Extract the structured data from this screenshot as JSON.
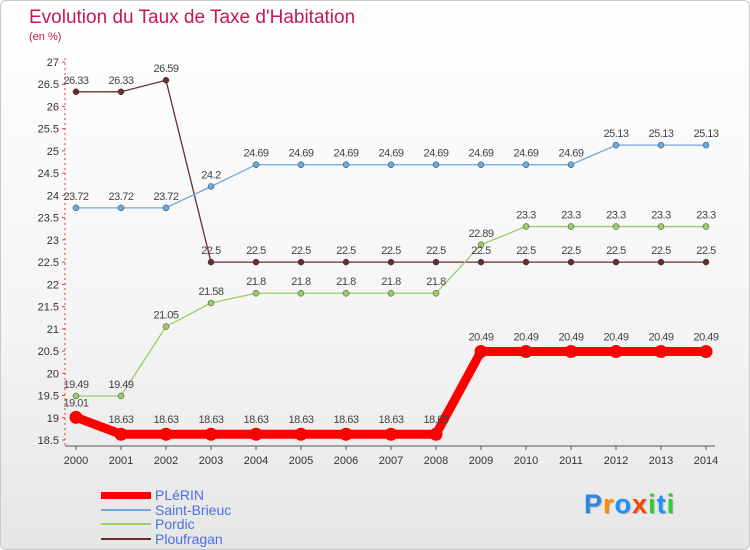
{
  "header": {
    "title": "Evolution du Taux de Taxe d'Habitation",
    "subtitle": "(en %)"
  },
  "chart_data": {
    "type": "line",
    "title": "Evolution du Taux de Taxe d'Habitation",
    "subtitle": "(en %)",
    "xlabel": "",
    "ylabel": "",
    "categories": [
      "2000",
      "2001",
      "2002",
      "2003",
      "2004",
      "2005",
      "2006",
      "2007",
      "2008",
      "2009",
      "2010",
      "2011",
      "2012",
      "2013",
      "2014"
    ],
    "y_ticks": [
      "18.5",
      "19",
      "19.5",
      "20",
      "20.5",
      "21",
      "21.5",
      "22",
      "22.5",
      "23",
      "23.5",
      "24",
      "24.5",
      "25",
      "25.5",
      "26",
      "26.5",
      "27"
    ],
    "ylim": [
      18.5,
      27
    ],
    "grid": false,
    "legend_position": "bottom-left",
    "series": [
      {
        "name": "PLéRIN",
        "color": "#ff0000",
        "values": [
          19.01,
          18.63,
          18.63,
          18.63,
          18.63,
          18.63,
          18.63,
          18.63,
          18.63,
          20.49,
          20.49,
          20.49,
          20.49,
          20.49,
          20.49
        ],
        "labels": [
          "19.01",
          "18.63",
          "18.63",
          "18.63",
          "18.63",
          "18.63",
          "18.63",
          "18.63",
          "18.63",
          "20.49",
          "20.49",
          "20.49",
          "20.49",
          "20.49",
          "20.49"
        ]
      },
      {
        "name": "Saint-Brieuc",
        "color": "#6fa8dc",
        "values": [
          23.72,
          23.72,
          23.72,
          24.2,
          24.69,
          24.69,
          24.69,
          24.69,
          24.69,
          24.69,
          24.69,
          24.69,
          25.13,
          25.13,
          25.13
        ],
        "labels": [
          "23.72",
          "23.72",
          "23.72",
          "24.2",
          "24.69",
          "24.69",
          "24.69",
          "24.69",
          "24.69",
          "24.69",
          "24.69",
          "24.69",
          "25.13",
          "25.13",
          "25.13"
        ]
      },
      {
        "name": "Pordic",
        "color": "#9ccc65",
        "values": [
          19.49,
          19.49,
          21.05,
          21.58,
          21.8,
          21.8,
          21.8,
          21.8,
          21.8,
          22.89,
          23.3,
          23.3,
          23.3,
          23.3,
          23.3
        ],
        "labels": [
          "19.49",
          "19.49",
          "21.05",
          "21.58",
          "21.8",
          "21.8",
          "21.8",
          "21.8",
          "21.8",
          "22.89",
          "23.3",
          "23.3",
          "23.3",
          "23.3",
          "23.3"
        ]
      },
      {
        "name": "Ploufragan",
        "color": "#6d2b2b",
        "values": [
          26.33,
          26.33,
          26.59,
          22.5,
          22.5,
          22.5,
          22.5,
          22.5,
          22.5,
          22.5,
          22.5,
          22.5,
          22.5,
          22.5,
          22.5
        ],
        "labels": [
          "26.33",
          "26.33",
          "26.59",
          "22.5",
          "22.5",
          "22.5",
          "22.5",
          "22.5",
          "22.5",
          "22.5",
          "22.5",
          "22.5",
          "22.5",
          "22.5",
          "22.5"
        ]
      }
    ]
  },
  "logo": {
    "letters": [
      "P",
      "r",
      "o",
      "x",
      "i",
      "t",
      "i"
    ],
    "colors": [
      "#2e86de",
      "#ff8c00",
      "#1e90ff",
      "#ff4500",
      "#32cd32",
      "#1e90ff",
      "#32cd32"
    ]
  }
}
